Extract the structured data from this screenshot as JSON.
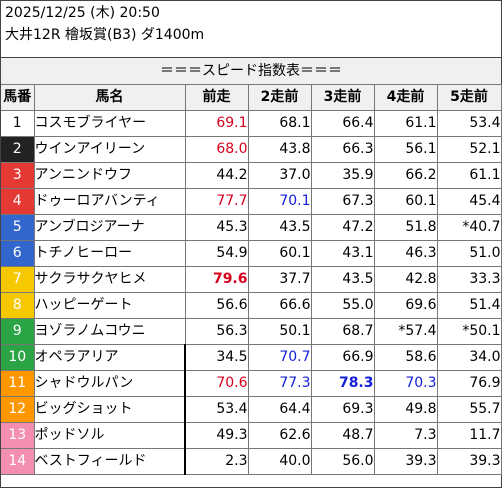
{
  "header": {
    "line1": "2025/12/25 (木) 20:50",
    "line2": "大井12R 檜坂賞(B3) ダ1400m"
  },
  "title": "＝＝＝スピード指数表＝＝＝",
  "columns": [
    "馬番",
    "馬名",
    "前走",
    "2走前",
    "3走前",
    "4走前",
    "5走前"
  ],
  "gate_colors": [
    "#ffffff",
    "#222222",
    "#e53935",
    "#1565c0",
    "#f5c800",
    "#2aa444",
    "#ff9800",
    "#f48fb1"
  ],
  "rows": [
    {
      "num": "1",
      "gate": "#ffffff",
      "numColor": "#000000",
      "name": "コスモブライヤー",
      "vals": [
        "69.1",
        "68.1",
        "66.4",
        "61.1",
        "53.4"
      ],
      "styles": [
        "red",
        "",
        "",
        "",
        ""
      ]
    },
    {
      "num": "2",
      "gate": "#222222",
      "numColor": "#ffffff",
      "name": "ウインアイリーン",
      "vals": [
        "68.0",
        "43.8",
        "66.3",
        "56.1",
        "52.1"
      ],
      "styles": [
        "red",
        "",
        "",
        "",
        ""
      ]
    },
    {
      "num": "3",
      "gate": "#e53935",
      "numColor": "#ffffff",
      "name": "アンニンドウフ",
      "vals": [
        "44.2",
        "37.0",
        "35.9",
        "66.2",
        "61.1"
      ],
      "styles": [
        "",
        "",
        "",
        "",
        ""
      ]
    },
    {
      "num": "4",
      "gate": "#e53935",
      "numColor": "#ffffff",
      "name": "ドゥーロアバンティ",
      "vals": [
        "77.7",
        "70.1",
        "67.3",
        "60.1",
        "45.4"
      ],
      "styles": [
        "red",
        "blue",
        "",
        "",
        ""
      ]
    },
    {
      "num": "5",
      "gate": "#3366cc",
      "numColor": "#ffffff",
      "name": "アンブロジアーナ",
      "vals": [
        "45.3",
        "43.5",
        "47.2",
        "51.8",
        "*40.7"
      ],
      "styles": [
        "",
        "",
        "",
        "",
        ""
      ]
    },
    {
      "num": "6",
      "gate": "#3366cc",
      "numColor": "#ffffff",
      "name": "トチノヒーロー",
      "vals": [
        "54.9",
        "60.1",
        "43.1",
        "46.3",
        "51.0"
      ],
      "styles": [
        "",
        "",
        "",
        "",
        ""
      ]
    },
    {
      "num": "7",
      "gate": "#f5c800",
      "numColor": "#ffffff",
      "name": "サクラサクヤヒメ",
      "vals": [
        "79.6",
        "37.7",
        "43.5",
        "42.8",
        "33.3"
      ],
      "styles": [
        "red bold",
        "",
        "",
        "",
        ""
      ]
    },
    {
      "num": "8",
      "gate": "#f5c800",
      "numColor": "#ffffff",
      "name": "ハッピーゲート",
      "vals": [
        "56.6",
        "66.6",
        "55.0",
        "69.6",
        "51.4"
      ],
      "styles": [
        "",
        "",
        "",
        "",
        ""
      ]
    },
    {
      "num": "9",
      "gate": "#2aa444",
      "numColor": "#ffffff",
      "name": "ヨゾラノムコウニ",
      "vals": [
        "56.3",
        "50.1",
        "68.7",
        "*57.4",
        "*50.1"
      ],
      "styles": [
        "",
        "",
        "",
        "",
        ""
      ]
    },
    {
      "num": "10",
      "gate": "#2aa444",
      "numColor": "#ffffff",
      "name": "オペラアリア",
      "vals": [
        "34.5",
        "70.7",
        "66.9",
        "58.6",
        "34.0"
      ],
      "styles": [
        "",
        "blue",
        "",
        "",
        ""
      ]
    },
    {
      "num": "11",
      "gate": "#ff9800",
      "numColor": "#ffffff",
      "name": "シャドウルパン",
      "vals": [
        "70.6",
        "77.3",
        "78.3",
        "70.3",
        "76.9"
      ],
      "styles": [
        "red",
        "blue",
        "blue bold",
        "blue",
        ""
      ]
    },
    {
      "num": "12",
      "gate": "#ff9800",
      "numColor": "#ffffff",
      "name": "ビッグショット",
      "vals": [
        "53.4",
        "64.4",
        "69.3",
        "49.8",
        "55.7"
      ],
      "styles": [
        "",
        "",
        "",
        "",
        ""
      ]
    },
    {
      "num": "13",
      "gate": "#f48fb1",
      "numColor": "#ffffff",
      "name": "ポッドソル",
      "vals": [
        "49.3",
        "62.6",
        "48.7",
        "7.3",
        "11.7"
      ],
      "styles": [
        "",
        "",
        "",
        "",
        ""
      ]
    },
    {
      "num": "14",
      "gate": "#f48fb1",
      "numColor": "#ffffff",
      "name": "ベストフィールド",
      "vals": [
        "2.3",
        "40.0",
        "56.0",
        "39.3",
        "39.3"
      ],
      "styles": [
        "",
        "",
        "",
        "",
        ""
      ]
    }
  ]
}
